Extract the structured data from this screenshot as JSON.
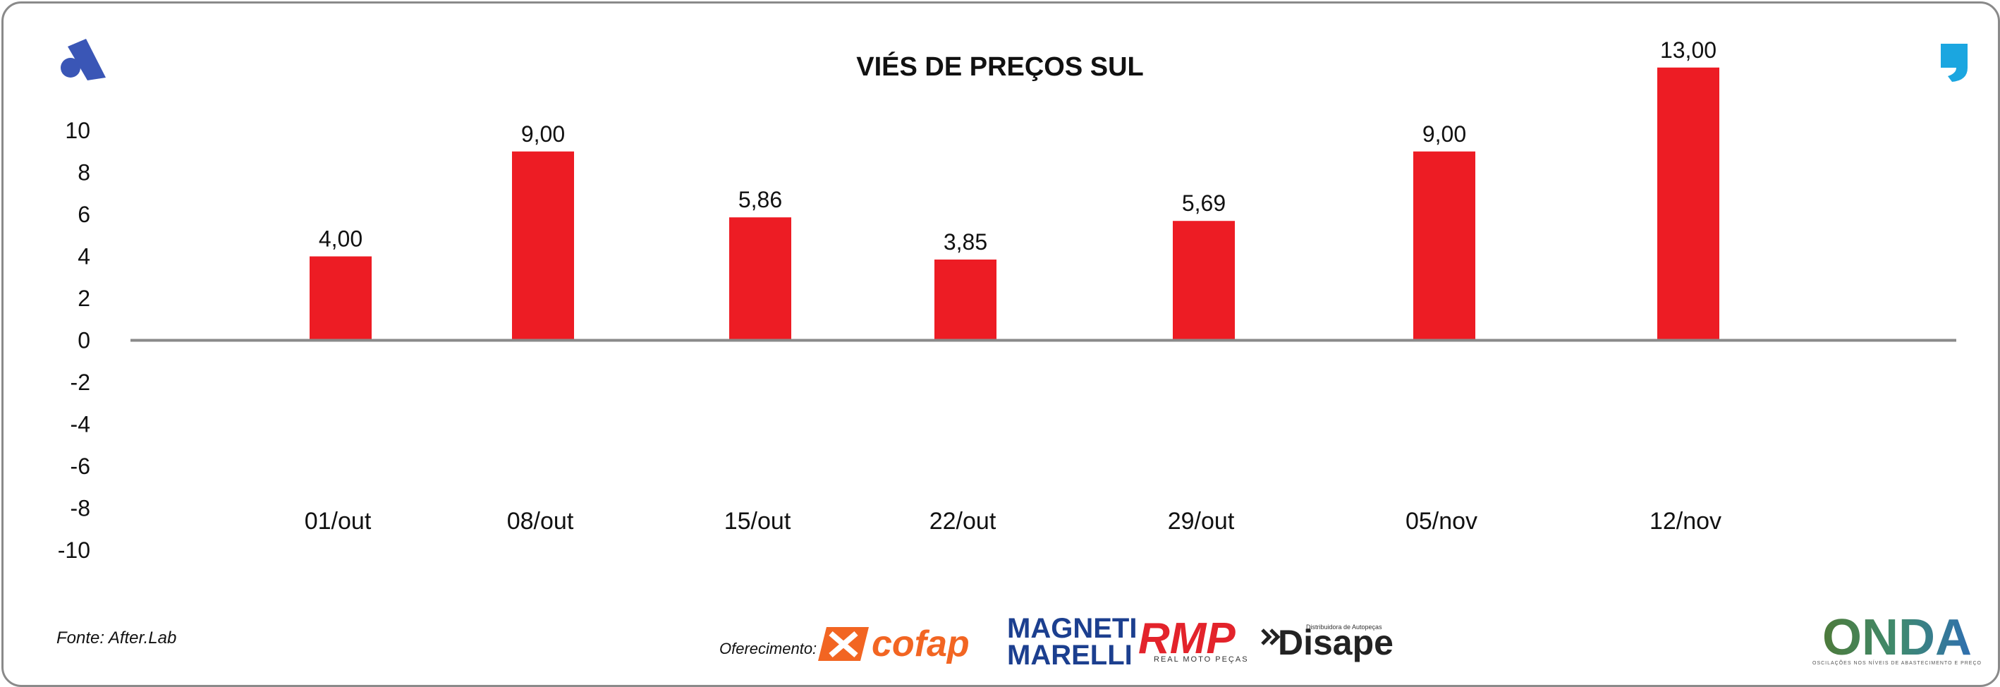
{
  "chart_data": {
    "type": "bar",
    "title": "VIÉS DE PREÇOS SUL",
    "categories": [
      "01/out",
      "08/out",
      "15/out",
      "22/out",
      "29/out",
      "05/nov",
      "12/nov"
    ],
    "values": [
      4.0,
      9.0,
      5.86,
      3.85,
      5.69,
      9.0,
      13.0
    ],
    "data_labels": [
      "4,00",
      "9,00",
      "5,86",
      "3,85",
      "5,69",
      "9,00",
      "13,00"
    ],
    "ylim": [
      -10,
      10
    ],
    "yticks": [
      10,
      8,
      6,
      4,
      2,
      0,
      -2,
      -4,
      -6,
      -8,
      -10
    ],
    "xlabel": "",
    "ylabel": "",
    "grid": false,
    "legend": "none",
    "bar_color": "#ed1c24"
  },
  "footer": {
    "source": "Fonte: After.Lab",
    "sponsor_label": "Oferecimento:"
  },
  "sponsors": {
    "cofap": "cofap",
    "magneti_line1": "MAGNETI",
    "magneti_line2": "MARELLI",
    "rmp": "RMP",
    "rmp_sub": "REAL MOTO PEÇAS",
    "disape": "Disape",
    "disape_sub": "Distribuidora de Autopeças",
    "onda": "ONDA",
    "onda_sub": "OSCILAÇÕES NOS NÍVEIS DE ABASTECIMENTO E PREÇO"
  },
  "colors": {
    "accent_blue": "#3a56b6",
    "quote_blue": "#1ba6e0",
    "cofap_orange": "#f26522",
    "magneti_blue": "#1c3f8f",
    "rmp_red": "#e3232b",
    "axis_gray": "#8a8a8a"
  },
  "icons": {
    "top_left": "brand-a-logo-icon",
    "top_right": "quote-mark-icon"
  }
}
